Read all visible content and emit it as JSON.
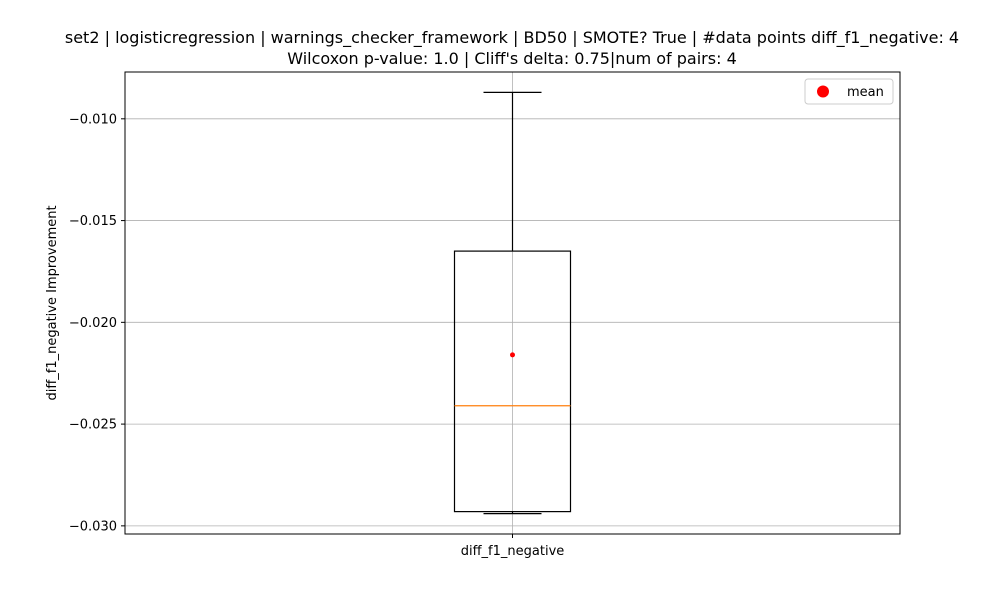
{
  "chart_data": {
    "type": "box",
    "title": "set2 | logisticregression | warnings_checker_framework | BD50 | SMOTE? True | #data points diff_f1_negative: 4",
    "subtitle": "Wilcoxon p-value: 1.0 | Cliff's delta: 0.75|num of pairs: 4",
    "xlabel": "",
    "ylabel": "diff_f1_negative Improvement",
    "categories": [
      "diff_f1_negative"
    ],
    "ylim": [
      -0.0304,
      -0.0077
    ],
    "yticks": [
      -0.01,
      -0.015,
      -0.02,
      -0.025,
      -0.03
    ],
    "ytick_labels": [
      "−0.010",
      "−0.015",
      "−0.020",
      "−0.025",
      "−0.030"
    ],
    "grid": true,
    "legend": {
      "entries": [
        "mean"
      ],
      "placement": "top-right"
    },
    "boxes": [
      {
        "name": "diff_f1_negative",
        "whisker_low": -0.0294,
        "q1": -0.0293,
        "median": -0.0241,
        "q3": -0.0165,
        "whisker_high": -0.0087,
        "mean": -0.0216
      }
    ],
    "colors": {
      "box": "#000000",
      "median": "#ff7f0e",
      "mean": "#ff0000",
      "grid": "#b0b0b0"
    }
  }
}
